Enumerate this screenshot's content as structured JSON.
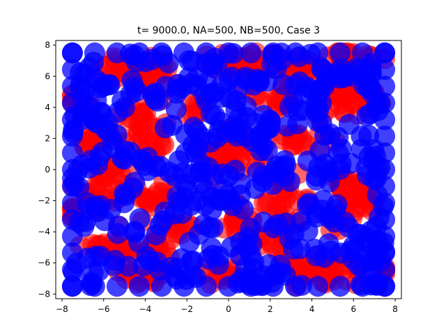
{
  "chart_data": {
    "type": "scatter",
    "title": "t= 9000.0, NA=500, NB=500, Case 3",
    "xlabel": "",
    "ylabel": "",
    "xlim": [
      -8.3,
      8.3
    ],
    "ylim": [
      -8.3,
      8.3
    ],
    "xticks": [
      -8,
      -6,
      -4,
      -2,
      0,
      2,
      4,
      6,
      8
    ],
    "yticks": [
      -8,
      -6,
      -4,
      -2,
      0,
      2,
      4,
      6,
      8
    ],
    "grid": false,
    "legend": "none",
    "series": [
      {
        "color": "#ff0000",
        "opacity": 0.6,
        "count": 500,
        "clusters": [
          {
            "cx": -5.3,
            "cy": 6.5,
            "sx": 0.5,
            "sy": 0.5,
            "n": 16
          },
          {
            "cx": -3.5,
            "cy": 6.2,
            "sx": 0.55,
            "sy": 0.5,
            "n": 20
          },
          {
            "cx": 0.8,
            "cy": 6.8,
            "sx": 0.9,
            "sy": 0.4,
            "n": 24
          },
          {
            "cx": 3.3,
            "cy": 6.5,
            "sx": 0.6,
            "sy": 0.4,
            "n": 12
          },
          {
            "cx": 5.8,
            "cy": 7.3,
            "sx": 0.9,
            "sy": 0.3,
            "n": 14
          },
          {
            "cx": 5.8,
            "cy": 4.4,
            "sx": 0.8,
            "sy": 0.6,
            "n": 30
          },
          {
            "cx": 2.1,
            "cy": 4.6,
            "sx": 0.6,
            "sy": 0.6,
            "n": 16
          },
          {
            "cx": -1.7,
            "cy": 4.0,
            "sx": 0.35,
            "sy": 0.35,
            "n": 7
          },
          {
            "cx": -6.5,
            "cy": 2.0,
            "sx": 0.45,
            "sy": 0.45,
            "n": 12
          },
          {
            "cx": -4.2,
            "cy": 3.0,
            "sx": 0.7,
            "sy": 1.0,
            "n": 28
          },
          {
            "cx": -3.4,
            "cy": 1.6,
            "sx": 0.4,
            "sy": 0.35,
            "n": 6
          },
          {
            "cx": 0.0,
            "cy": 1.0,
            "sx": 0.75,
            "sy": 0.7,
            "n": 30
          },
          {
            "cx": 3.2,
            "cy": 1.9,
            "sx": 0.7,
            "sy": 0.4,
            "n": 18
          },
          {
            "cx": -6.0,
            "cy": -1.2,
            "sx": 0.6,
            "sy": 0.7,
            "n": 20
          },
          {
            "cx": -5.3,
            "cy": -0.2,
            "sx": 0.3,
            "sy": 0.3,
            "n": 6
          },
          {
            "cx": -3.6,
            "cy": -1.8,
            "sx": 0.55,
            "sy": 0.45,
            "n": 14
          },
          {
            "cx": -2.3,
            "cy": -3.7,
            "sx": 0.4,
            "sy": 0.35,
            "n": 8
          },
          {
            "cx": 2.8,
            "cy": -2.0,
            "sx": 0.6,
            "sy": 0.8,
            "n": 22
          },
          {
            "cx": 0.2,
            "cy": -3.2,
            "sx": 0.5,
            "sy": 0.45,
            "n": 14
          },
          {
            "cx": 6.2,
            "cy": -2.4,
            "sx": 0.65,
            "sy": 0.8,
            "n": 26
          },
          {
            "cx": 5.6,
            "cy": -0.8,
            "sx": 0.4,
            "sy": 0.4,
            "n": 8
          },
          {
            "cx": -6.3,
            "cy": -4.9,
            "sx": 0.4,
            "sy": 0.3,
            "n": 8
          },
          {
            "cx": -5.1,
            "cy": -5.1,
            "sx": 0.45,
            "sy": 0.45,
            "n": 12
          },
          {
            "cx": -3.3,
            "cy": -5.0,
            "sx": 0.5,
            "sy": 0.4,
            "n": 12
          },
          {
            "cx": -4.3,
            "cy": -7.0,
            "sx": 0.7,
            "sy": 0.35,
            "n": 14
          },
          {
            "cx": -0.3,
            "cy": -6.8,
            "sx": 0.6,
            "sy": 0.35,
            "n": 12
          },
          {
            "cx": 1.9,
            "cy": -5.1,
            "sx": 0.5,
            "sy": 0.4,
            "n": 10
          },
          {
            "cx": 3.6,
            "cy": -6.1,
            "sx": 0.5,
            "sy": 0.4,
            "n": 10
          },
          {
            "cx": 5.3,
            "cy": -6.8,
            "sx": 0.9,
            "sy": 0.5,
            "n": 20
          },
          {
            "cx": 7.6,
            "cy": -6.5,
            "sx": 0.25,
            "sy": 0.35,
            "n": 5
          },
          {
            "cx": -7.6,
            "cy": 4.6,
            "sx": 0.2,
            "sy": 0.3,
            "n": 4
          },
          {
            "cx": -7.5,
            "cy": -2.5,
            "sx": 0.2,
            "sy": 0.3,
            "n": 4
          }
        ]
      },
      {
        "color": "#0000ff",
        "opacity": 0.75,
        "count": 500
      }
    ]
  }
}
